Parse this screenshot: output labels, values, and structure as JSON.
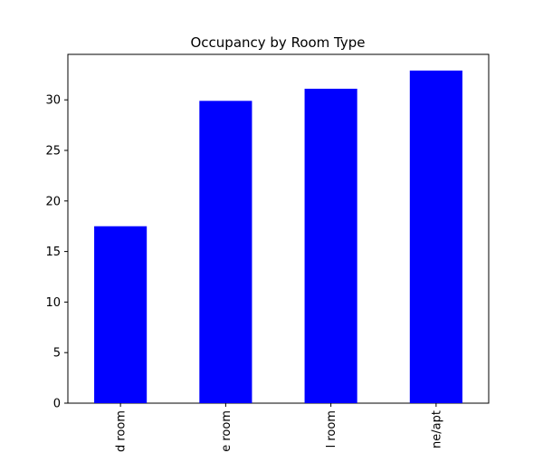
{
  "chart_data": {
    "type": "bar",
    "title": "Occupancy by Room Type",
    "categories": [
      "d room",
      "e room",
      "l room",
      "ne/apt"
    ],
    "values": [
      17.5,
      29.9,
      31.1,
      32.9
    ],
    "color": "#0000ff",
    "ylim": [
      0,
      34.5
    ],
    "yticks": [
      0,
      5,
      10,
      15,
      20,
      25,
      30
    ]
  }
}
